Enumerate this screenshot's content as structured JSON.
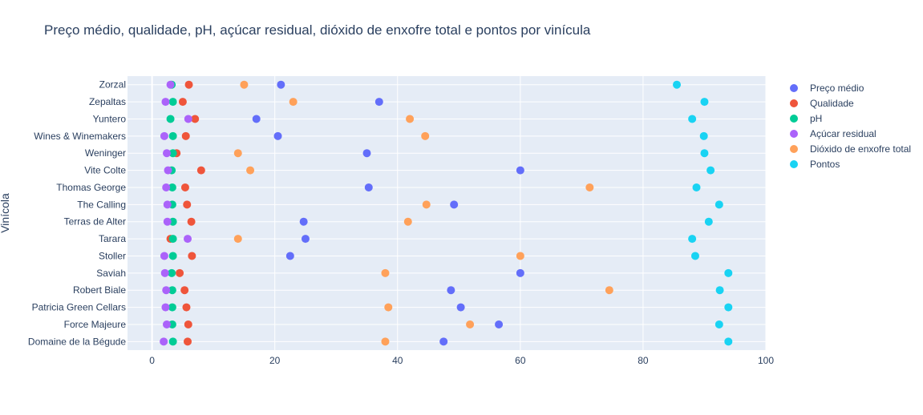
{
  "chart_data": {
    "type": "scatter",
    "title": "Preço médio, qualidade, pH, açúcar residual, dióxido de enxofre total e pontos por vinícula",
    "xlabel": "",
    "ylabel": "Vinícola",
    "xlim": [
      -4,
      100
    ],
    "x_ticks": [
      "0",
      "20",
      "40",
      "60",
      "80",
      "100"
    ],
    "grid": true,
    "legend_position": "right",
    "categories": [
      "Domaine de la Bégude",
      "Force Majeure",
      "Patricia Green Cellars",
      "Robert Biale",
      "Saviah",
      "Stoller",
      "Tarara",
      "Terras de Alter",
      "The Calling",
      "Thomas George",
      "Vite Colte",
      "Weninger",
      "Wines & Winemakers",
      "Yuntero",
      "Zepaltas",
      "Zorzal"
    ],
    "series": [
      {
        "name": "Preço médio",
        "color": "#636efa",
        "values": [
          47.5,
          56.5,
          50.3,
          48.7,
          60.0,
          22.5,
          25.0,
          24.7,
          49.2,
          35.3,
          60.0,
          35.0,
          20.5,
          17.0,
          37.0,
          21.0
        ]
      },
      {
        "name": "Qualidade",
        "color": "#ef553b",
        "values": [
          5.8,
          5.9,
          5.6,
          5.3,
          4.5,
          6.5,
          3.0,
          6.4,
          5.7,
          5.4,
          8.0,
          4.0,
          5.5,
          7.0,
          5.0,
          6.0
        ]
      },
      {
        "name": "pH",
        "color": "#00cc96",
        "values": [
          3.4,
          3.3,
          3.3,
          3.3,
          3.2,
          3.4,
          3.4,
          3.4,
          3.3,
          3.3,
          3.2,
          3.4,
          3.4,
          3.0,
          3.4,
          3.2
        ]
      },
      {
        "name": "Açúcar residual",
        "color": "#ab63fa",
        "values": [
          1.9,
          2.4,
          2.2,
          2.3,
          2.1,
          2.0,
          5.8,
          2.5,
          2.5,
          2.3,
          2.6,
          2.4,
          2.0,
          5.9,
          2.2,
          3.0
        ]
      },
      {
        "name": "Dióxido de enxofre total",
        "color": "#ffa15a",
        "values": [
          38.0,
          51.8,
          38.5,
          74.5,
          38.0,
          60.0,
          14.0,
          41.7,
          44.7,
          71.3,
          16.0,
          14.0,
          44.5,
          42.0,
          23.0,
          15.0
        ]
      },
      {
        "name": "Pontos",
        "color": "#19d3f3",
        "values": [
          93.9,
          92.4,
          93.9,
          92.5,
          93.9,
          88.5,
          88.0,
          90.7,
          92.4,
          88.7,
          91.0,
          90.0,
          89.9,
          88.0,
          90.0,
          85.5
        ]
      }
    ]
  }
}
